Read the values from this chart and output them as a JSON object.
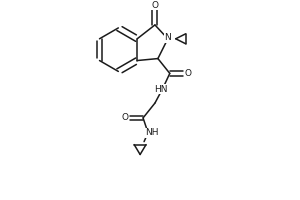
{
  "background_color": "#ffffff",
  "line_color": "#1a1a1a",
  "line_width": 1.1,
  "figsize": [
    3.0,
    2.0
  ],
  "dpi": 100,
  "xlim": [
    0,
    300
  ],
  "ylim": [
    0,
    200
  ]
}
